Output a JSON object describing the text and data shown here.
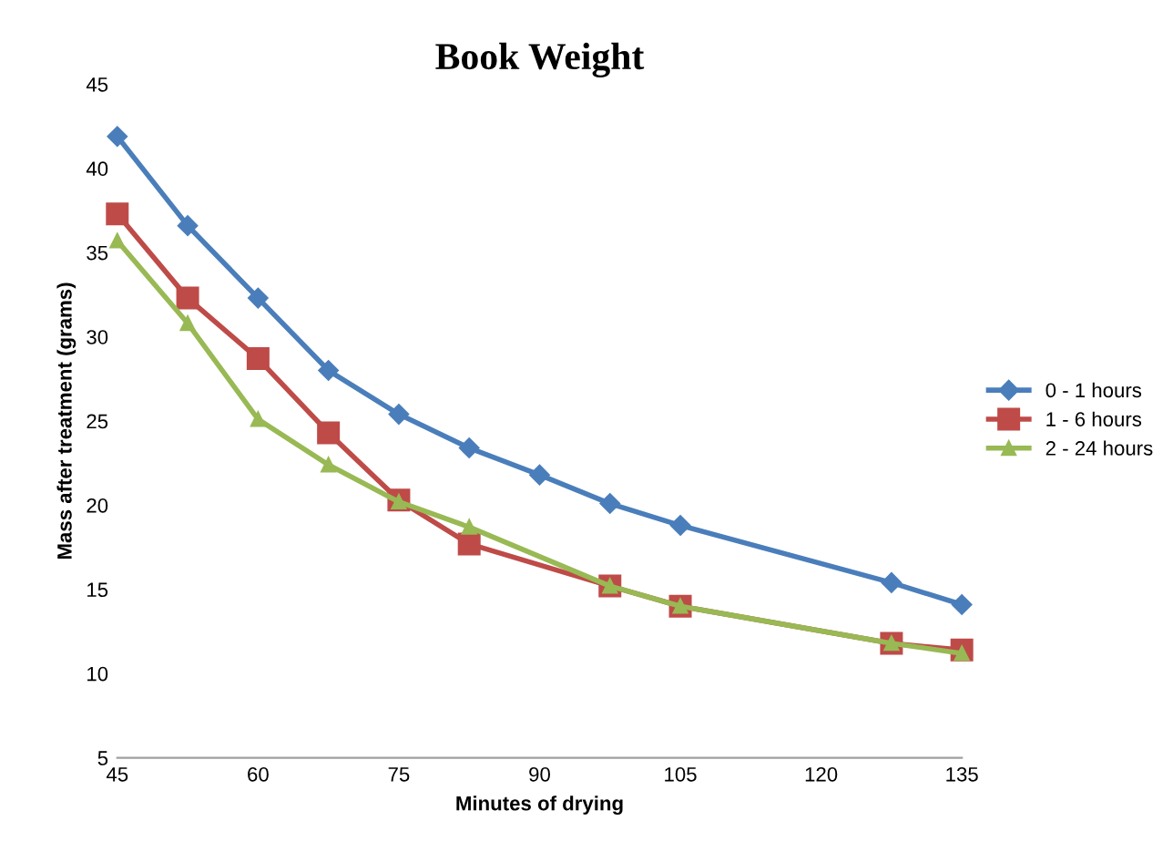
{
  "chart_data": {
    "type": "line",
    "title": "Book Weight",
    "xlabel": "Minutes of drying",
    "ylabel": "Mass after treatment (grams)",
    "xlim": [
      45,
      135
    ],
    "xticks": [
      45,
      60,
      75,
      90,
      105,
      120,
      135
    ],
    "ylim": [
      5,
      45
    ],
    "yticks": [
      5,
      10,
      15,
      20,
      25,
      30,
      35,
      40,
      45
    ],
    "grid": false,
    "legend": "right",
    "series": [
      {
        "name": "0 - 1 hours",
        "color": "#4a7ebb",
        "marker": "diamond",
        "x": [
          45,
          52.5,
          60,
          67.5,
          75,
          82.5,
          90,
          97.5,
          105,
          127.5,
          135
        ],
        "values": [
          41.9,
          36.6,
          32.3,
          28.0,
          25.4,
          23.4,
          21.8,
          20.1,
          18.8,
          15.4,
          14.1
        ]
      },
      {
        "name": "1 - 6 hours",
        "color": "#be4b48",
        "marker": "square",
        "x": [
          45,
          52.5,
          60,
          67.5,
          75,
          82.5,
          97.5,
          105,
          127.5,
          135
        ],
        "values": [
          37.3,
          32.3,
          28.7,
          24.3,
          20.3,
          17.7,
          15.2,
          14.0,
          11.8,
          11.4
        ]
      },
      {
        "name": "2 - 24 hours",
        "color": "#98b954",
        "marker": "triangle",
        "x": [
          45,
          52.5,
          60,
          67.5,
          75,
          82.5,
          97.5,
          105,
          127.5,
          135
        ],
        "values": [
          35.7,
          30.8,
          25.1,
          22.4,
          20.2,
          18.7,
          15.2,
          14.0,
          11.8,
          11.2
        ]
      }
    ]
  }
}
